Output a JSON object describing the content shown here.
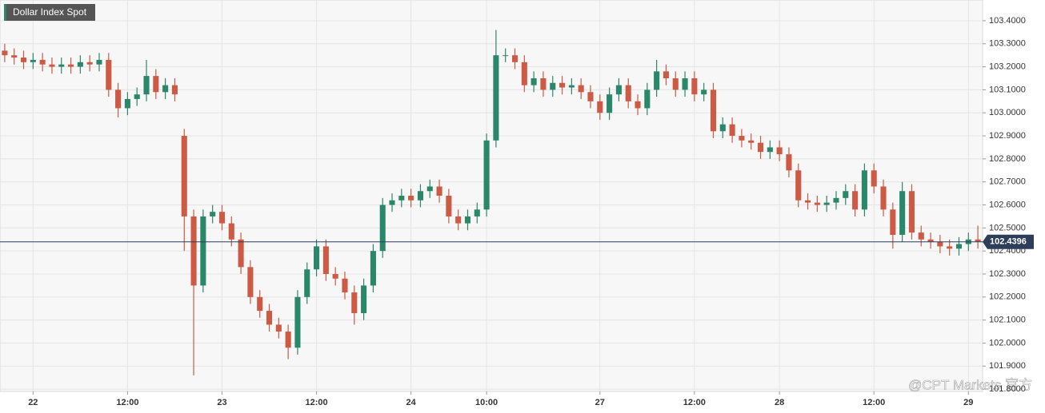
{
  "chart_data": {
    "type": "candlestick",
    "title": "Dollar Index Spot",
    "watermark": "@CPT Markets 官方",
    "categories": [
      null,
      null,
      null,
      "22",
      null,
      null,
      null,
      null,
      null,
      null,
      null,
      null,
      null,
      "12:00",
      null,
      null,
      null,
      null,
      null,
      null,
      null,
      null,
      null,
      "23",
      null,
      null,
      null,
      null,
      null,
      null,
      null,
      null,
      null,
      "12:00",
      null,
      null,
      null,
      null,
      null,
      null,
      null,
      null,
      null,
      "24",
      null,
      null,
      null,
      null,
      null,
      null,
      null,
      "10:00",
      null,
      null,
      null,
      null,
      null,
      null,
      null,
      null,
      null,
      null,
      null,
      "27",
      null,
      null,
      null,
      null,
      null,
      null,
      null,
      null,
      null,
      "12:00",
      null,
      null,
      null,
      null,
      null,
      null,
      null,
      null,
      "28",
      null,
      null,
      null,
      null,
      null,
      null,
      null,
      null,
      null,
      "12:00",
      null,
      null,
      null,
      null,
      null,
      null,
      null,
      null,
      null,
      "29",
      null
    ],
    "open": [
      103.27,
      103.25,
      103.24,
      103.22,
      103.23,
      103.21,
      103.2,
      103.21,
      103.2,
      103.22,
      103.21,
      103.23,
      103.1,
      103.02,
      103.06,
      103.08,
      103.16,
      103.09,
      103.12,
      102.9,
      102.55,
      102.25,
      102.55,
      102.57,
      102.52,
      102.45,
      102.33,
      102.2,
      102.14,
      102.08,
      102.05,
      101.98,
      102.2,
      102.32,
      102.42,
      102.3,
      102.28,
      102.22,
      102.13,
      102.25,
      102.4,
      102.6,
      102.62,
      102.64,
      102.62,
      102.66,
      102.68,
      102.64,
      102.55,
      102.52,
      102.55,
      102.58,
      102.88,
      103.25,
      103.25,
      103.22,
      103.12,
      103.15,
      103.1,
      103.13,
      103.11,
      103.12,
      103.09,
      103.05,
      103.0,
      103.08,
      103.12,
      103.05,
      103.02,
      103.1,
      103.18,
      103.15,
      103.1,
      103.15,
      103.08,
      103.1,
      102.92,
      102.95,
      102.9,
      102.88,
      102.87,
      102.83,
      102.85,
      102.82,
      102.75,
      102.62,
      102.61,
      102.6,
      102.61,
      102.63,
      102.66,
      102.58,
      102.75,
      102.68,
      102.58,
      102.47,
      102.66,
      102.48,
      102.45,
      102.44,
      102.42,
      102.41,
      102.43,
      102.45
    ],
    "high": [
      103.3,
      103.28,
      103.27,
      103.26,
      103.26,
      103.24,
      103.24,
      103.24,
      103.25,
      103.25,
      103.26,
      103.26,
      103.13,
      103.09,
      103.11,
      103.23,
      103.19,
      103.15,
      103.15,
      102.93,
      102.58,
      102.58,
      102.6,
      102.6,
      102.55,
      102.48,
      102.36,
      102.23,
      102.17,
      102.11,
      102.08,
      102.23,
      102.35,
      102.45,
      102.45,
      102.33,
      102.31,
      102.25,
      102.28,
      102.43,
      102.63,
      102.65,
      102.67,
      102.67,
      102.69,
      102.71,
      102.71,
      102.67,
      102.58,
      102.58,
      102.61,
      102.91,
      103.36,
      103.28,
      103.28,
      103.25,
      103.18,
      103.18,
      103.16,
      103.16,
      103.15,
      103.15,
      103.12,
      103.08,
      103.11,
      103.15,
      103.15,
      103.08,
      103.13,
      103.23,
      103.21,
      103.18,
      103.18,
      103.18,
      103.13,
      103.13,
      102.98,
      102.98,
      102.93,
      102.91,
      102.9,
      102.88,
      102.88,
      102.85,
      102.78,
      102.65,
      102.64,
      102.64,
      102.66,
      102.69,
      102.69,
      102.78,
      102.78,
      102.71,
      102.61,
      102.7,
      102.69,
      102.51,
      102.48,
      102.47,
      102.45,
      102.46,
      102.48,
      102.51
    ],
    "low": [
      103.22,
      103.21,
      103.19,
      103.19,
      103.18,
      103.17,
      103.17,
      103.17,
      103.17,
      103.18,
      103.18,
      103.07,
      102.98,
      102.99,
      103.03,
      103.05,
      103.06,
      103.06,
      103.05,
      102.4,
      101.86,
      102.22,
      102.52,
      102.49,
      102.42,
      102.3,
      102.17,
      102.11,
      102.05,
      102.02,
      101.93,
      101.95,
      102.17,
      102.29,
      102.27,
      102.25,
      102.19,
      102.08,
      102.1,
      102.22,
      102.37,
      102.57,
      102.59,
      102.59,
      102.59,
      102.63,
      102.61,
      102.52,
      102.49,
      102.49,
      102.52,
      102.55,
      102.85,
      103.22,
      103.19,
      103.09,
      103.09,
      103.07,
      103.07,
      103.08,
      103.08,
      103.06,
      103.02,
      102.97,
      102.97,
      103.05,
      103.02,
      102.99,
      102.99,
      103.07,
      103.12,
      103.07,
      103.07,
      103.05,
      103.05,
      102.89,
      102.89,
      102.87,
      102.85,
      102.84,
      102.8,
      102.8,
      102.79,
      102.72,
      102.59,
      102.58,
      102.57,
      102.57,
      102.58,
      102.6,
      102.55,
      102.55,
      102.65,
      102.55,
      102.41,
      102.44,
      102.45,
      102.42,
      102.41,
      102.39,
      102.38,
      102.38,
      102.4,
      102.41
    ],
    "close": [
      103.25,
      103.24,
      103.22,
      103.23,
      103.21,
      103.2,
      103.21,
      103.2,
      103.22,
      103.21,
      103.23,
      103.1,
      103.02,
      103.06,
      103.08,
      103.16,
      103.09,
      103.12,
      103.08,
      102.55,
      102.25,
      102.55,
      102.57,
      102.52,
      102.45,
      102.33,
      102.2,
      102.14,
      102.08,
      102.05,
      101.98,
      102.2,
      102.32,
      102.42,
      102.3,
      102.28,
      102.22,
      102.13,
      102.25,
      102.4,
      102.6,
      102.62,
      102.64,
      102.62,
      102.66,
      102.68,
      102.64,
      102.55,
      102.52,
      102.55,
      102.58,
      102.88,
      103.25,
      103.25,
      103.22,
      103.12,
      103.15,
      103.1,
      103.13,
      103.11,
      103.12,
      103.09,
      103.05,
      103.0,
      103.08,
      103.12,
      103.05,
      103.02,
      103.1,
      103.18,
      103.15,
      103.1,
      103.15,
      103.08,
      103.1,
      102.92,
      102.95,
      102.9,
      102.88,
      102.87,
      102.83,
      102.85,
      102.82,
      102.75,
      102.62,
      102.61,
      102.6,
      102.61,
      102.63,
      102.66,
      102.58,
      102.75,
      102.68,
      102.58,
      102.47,
      102.66,
      102.48,
      102.45,
      102.44,
      102.42,
      102.41,
      102.43,
      102.45,
      102.44
    ],
    "up_color": "#2b8769",
    "down_color": "#cc5a44",
    "last_price": 102.4396,
    "last_price_color": "#2c3e5a",
    "ylim": [
      101.79,
      103.49
    ],
    "yticks": [
      {
        "value": 101.8,
        "label": "101.8000"
      },
      {
        "value": 101.9,
        "label": "101.9000"
      },
      {
        "value": 102.0,
        "label": "102.0000"
      },
      {
        "value": 102.1,
        "label": "102.1000"
      },
      {
        "value": 102.2,
        "label": "102.2000"
      },
      {
        "value": 102.3,
        "label": "102.3000"
      },
      {
        "value": 102.4,
        "label": "102.4000"
      },
      {
        "value": 102.5,
        "label": "102.5000"
      },
      {
        "value": 102.6,
        "label": "102.6000"
      },
      {
        "value": 102.7,
        "label": "102.7000"
      },
      {
        "value": 102.8,
        "label": "102.8000"
      },
      {
        "value": 102.9,
        "label": "102.9000"
      },
      {
        "value": 103.0,
        "label": "103.0000"
      },
      {
        "value": 103.1,
        "label": "103.1000"
      },
      {
        "value": 103.2,
        "label": "103.2000"
      },
      {
        "value": 103.3,
        "label": "103.3000"
      },
      {
        "value": 103.4,
        "label": "103.4000"
      }
    ],
    "grid": true
  }
}
